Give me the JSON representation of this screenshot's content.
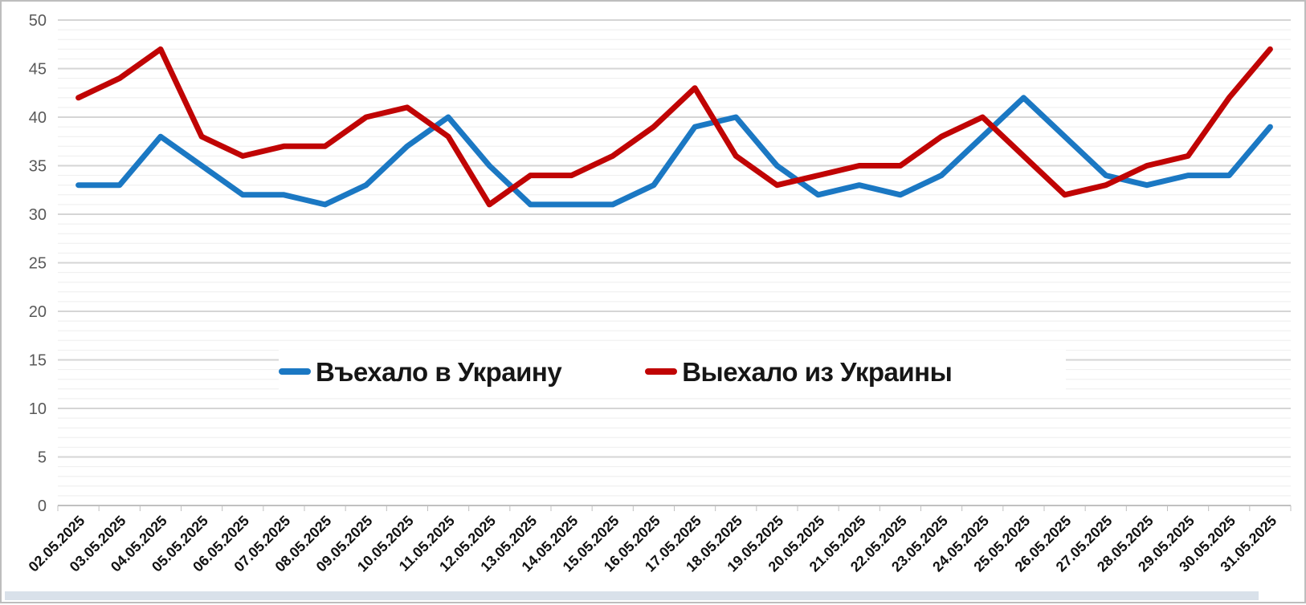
{
  "chart_data": {
    "type": "line",
    "title": "",
    "xlabel": "",
    "ylabel": "",
    "x": [
      "02.05.2025",
      "03.05.2025",
      "04.05.2025",
      "05.05.2025",
      "06.05.2025",
      "07.05.2025",
      "08.05.2025",
      "09.05.2025",
      "10.05.2025",
      "11.05.2025",
      "12.05.2025",
      "13.05.2025",
      "14.05.2025",
      "15.05.2025",
      "16.05.2025",
      "17.05.2025",
      "18.05.2025",
      "19.05.2025",
      "20.05.2025",
      "21.05.2025",
      "22.05.2025",
      "23.05.2025",
      "24.05.2025",
      "25.05.2025",
      "26.05.2025",
      "27.05.2025",
      "28.05.2025",
      "29.05.2025",
      "30.05.2025",
      "31.05.2025"
    ],
    "series": [
      {
        "name": "Въехало в Украину",
        "color": "#1b78c3",
        "values": [
          33,
          33,
          38,
          35,
          32,
          32,
          31,
          33,
          37,
          40,
          35,
          31,
          31,
          31,
          33,
          39,
          40,
          35,
          32,
          33,
          32,
          34,
          38,
          42,
          38,
          34,
          33,
          34,
          34,
          39
        ]
      },
      {
        "name": "Выехало из Украины",
        "color": "#c00404",
        "values": [
          42,
          44,
          47,
          38,
          36,
          37,
          37,
          40,
          41,
          38,
          31,
          34,
          34,
          36,
          39,
          43,
          36,
          33,
          34,
          35,
          35,
          38,
          40,
          36,
          32,
          33,
          35,
          36,
          42,
          47
        ]
      }
    ],
    "ylim": [
      0,
      50
    ],
    "y_ticks": [
      0,
      5,
      10,
      15,
      20,
      25,
      30,
      35,
      40,
      45,
      50
    ],
    "minor_grid_step": 1,
    "major_grid_step": 5,
    "grid": true,
    "legend_position": "center",
    "x_label_rotation_deg": -45
  },
  "style_colors": {
    "major_gridline": "#d5d5d5",
    "minor_gridline": "#eeeeee",
    "axis_line": "#c0c0c0",
    "y_tick_text": "#595959",
    "x_tick_text": "#121212"
  }
}
